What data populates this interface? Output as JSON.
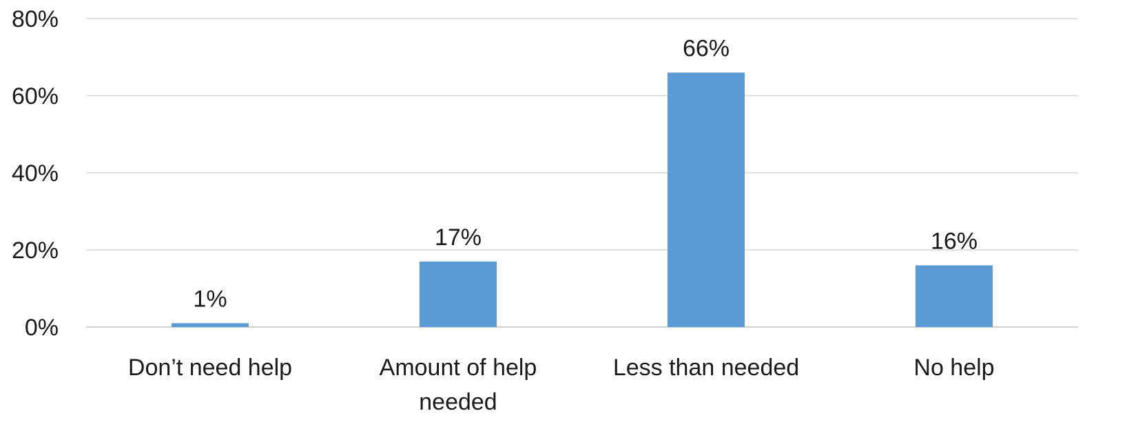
{
  "chart_data": {
    "type": "bar",
    "categories": [
      [
        "Don’t need help"
      ],
      [
        "Amount of help",
        "needed"
      ],
      [
        "Less than needed"
      ],
      [
        "No help"
      ]
    ],
    "values": [
      1,
      17,
      66,
      16
    ],
    "data_labels": [
      "1%",
      "17%",
      "66%",
      "16%"
    ],
    "title": "",
    "xlabel": "",
    "ylabel": "",
    "ylim": [
      0,
      80
    ],
    "yticks": [
      0,
      20,
      40,
      60,
      80
    ],
    "ytick_labels": [
      "0%",
      "20%",
      "40%",
      "60%",
      "80%"
    ],
    "grid": true,
    "legend": "none",
    "bar_color": "#5b9bd5",
    "grid_color": "#d9d9d9"
  }
}
